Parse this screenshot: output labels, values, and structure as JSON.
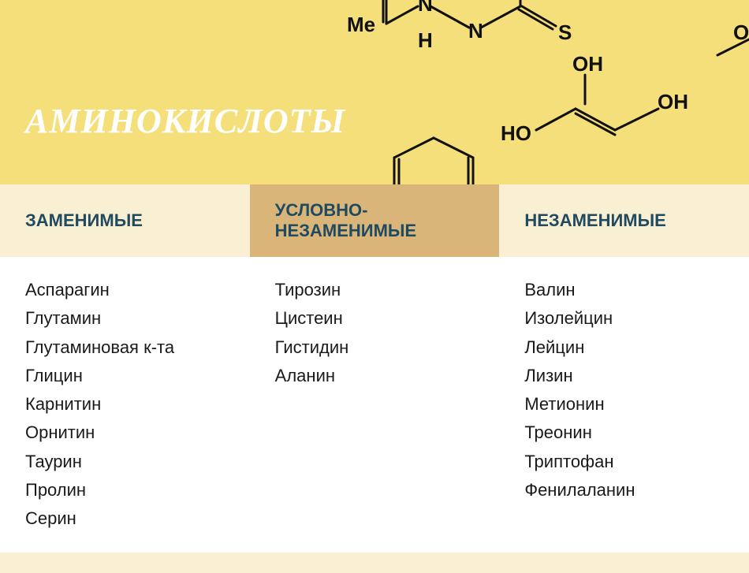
{
  "hero": {
    "title": "АМИНОКИСЛОТЫ",
    "title_color": "#ffffff",
    "title_fontsize": 44,
    "background_color": "#f5df7a",
    "chem_labels": [
      "Me",
      "N",
      "H",
      "N",
      "S",
      "OH",
      "HO",
      "OH",
      "O"
    ],
    "chem_stroke": "#111111",
    "chem_text_color": "#111111"
  },
  "columns": [
    {
      "header": "ЗАМЕНИМЫЕ",
      "header_bg": "#f9f0d4",
      "header_color": "#1f4a5f",
      "items": [
        "Аспарагин",
        "Глутамин",
        "Глутаминовая к-та",
        "Глицин",
        "Карнитин",
        "Орнитин",
        "Таурин",
        "Пролин",
        "Серин"
      ]
    },
    {
      "header": "УСЛОВНО-\nНЕЗАМЕНИМЫЕ",
      "header_bg": "#d9b57a",
      "header_color": "#1f4a5f",
      "items": [
        "Тирозин",
        "Цистеин",
        "Гистидин",
        "Аланин"
      ]
    },
    {
      "header": "НЕЗАМЕНИМЫЕ",
      "header_bg": "#f9f0d4",
      "header_color": "#1f4a5f",
      "items": [
        "Валин",
        "Изолейцин",
        "Лейцин",
        "Лизин",
        "Метионин",
        "Треонин",
        "Триптофан",
        "Фенилаланин"
      ]
    }
  ],
  "body_bg": "#ffffff",
  "footer_bg": "#f9f0d4"
}
